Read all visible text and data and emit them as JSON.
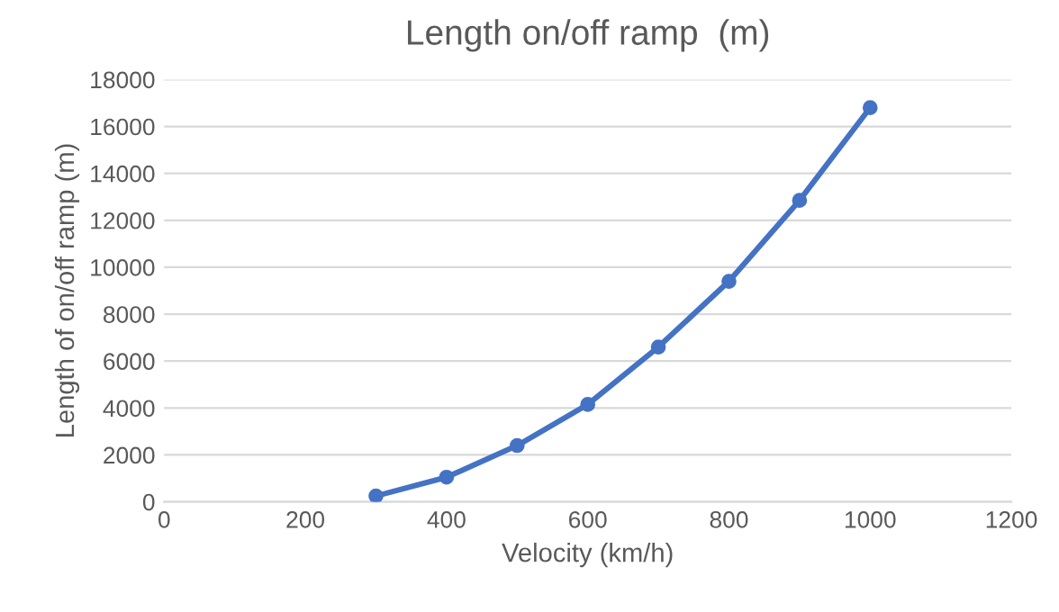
{
  "chart_data": {
    "type": "line",
    "title": "Length on/off ramp  (m)",
    "xlabel": "Velocity (km/h)",
    "ylabel": "Length of on/off ramp (m)",
    "x": [
      300,
      400,
      500,
      600,
      700,
      800,
      900,
      1000
    ],
    "series": [
      {
        "color": "#4472c4",
        "values": [
          250,
          1050,
          2400,
          4150,
          6600,
          9400,
          12850,
          16800
        ]
      }
    ],
    "xlim": [
      0,
      1200
    ],
    "xticks": [
      0,
      200,
      400,
      600,
      800,
      1000,
      1200
    ],
    "ylim": [
      0,
      18000
    ],
    "yticks": [
      0,
      2000,
      4000,
      6000,
      8000,
      10000,
      12000,
      14000,
      16000,
      18000
    ],
    "grid": "y",
    "marker": "circle",
    "line_style": "solid",
    "legend": false
  }
}
